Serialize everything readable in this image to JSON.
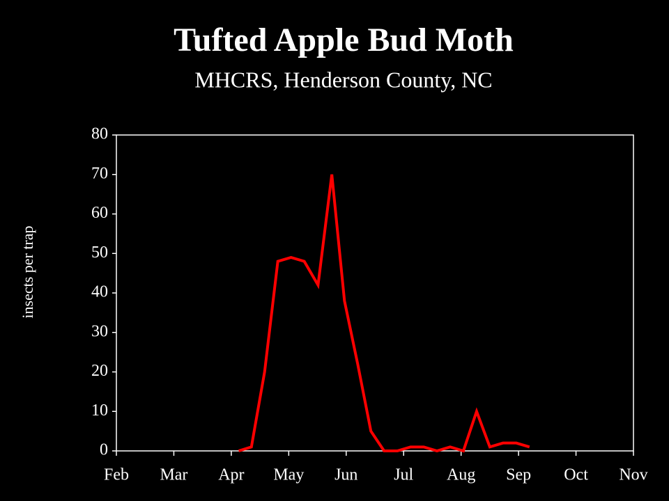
{
  "chart_data": {
    "type": "line",
    "title": "Tufted Apple Bud Moth",
    "subtitle": "MHCRS, Henderson County, NC",
    "y_label": "insects per trap",
    "x": [
      4.13,
      4.35,
      4.58,
      4.81,
      5.04,
      5.27,
      5.51,
      5.75,
      5.97,
      6.2,
      6.43,
      6.66,
      6.89,
      7.12,
      7.35,
      7.58,
      7.81,
      8.04,
      8.27,
      8.5,
      8.73,
      8.96,
      9.19
    ],
    "series": [
      {
        "name": "insects per trap",
        "color": "#ff0000",
        "values": [
          0,
          1,
          20,
          48,
          49,
          48,
          42,
          70,
          38,
          22,
          5,
          0,
          0,
          1,
          1,
          0,
          1,
          0,
          10,
          1,
          2,
          2,
          1
        ]
      }
    ],
    "xlim": [
      2,
      11
    ],
    "xticks": [
      {
        "value": 2,
        "label": "Feb"
      },
      {
        "value": 3,
        "label": "Mar"
      },
      {
        "value": 4,
        "label": "Apr"
      },
      {
        "value": 5,
        "label": "May"
      },
      {
        "value": 6,
        "label": "Jun"
      },
      {
        "value": 7,
        "label": "Jul"
      },
      {
        "value": 8,
        "label": "Aug"
      },
      {
        "value": 9,
        "label": "Sep"
      },
      {
        "value": 10,
        "label": "Oct"
      },
      {
        "value": 11,
        "label": "Nov"
      }
    ],
    "ylim": [
      0,
      80
    ],
    "yticks": [
      0,
      10,
      20,
      30,
      40,
      50,
      60,
      70,
      80
    ]
  }
}
